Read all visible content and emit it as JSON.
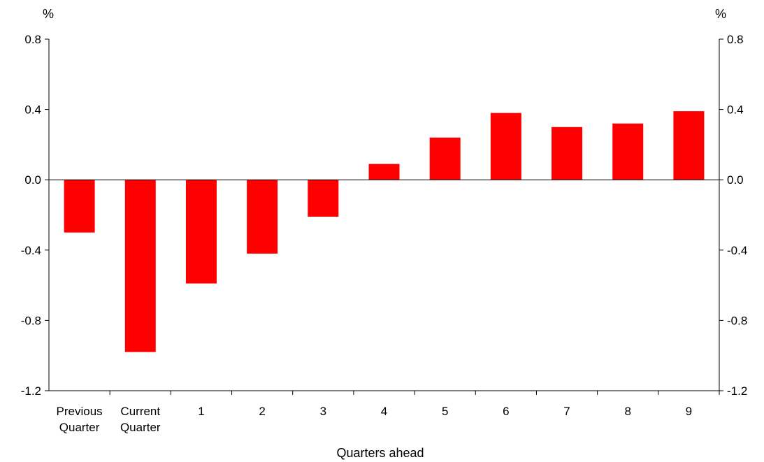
{
  "chart_data": {
    "type": "bar",
    "categories": [
      [
        "Previous",
        "Quarter"
      ],
      [
        "Current",
        "Quarter"
      ],
      [
        "1"
      ],
      [
        "2"
      ],
      [
        "3"
      ],
      [
        "4"
      ],
      [
        "5"
      ],
      [
        "6"
      ],
      [
        "7"
      ],
      [
        "8"
      ],
      [
        "9"
      ]
    ],
    "values": [
      -0.3,
      -0.98,
      -0.59,
      -0.42,
      -0.21,
      0.09,
      0.24,
      0.38,
      0.3,
      0.32,
      0.39
    ],
    "xlabel": "Quarters ahead",
    "ylabel_left": "%",
    "ylabel_right": "%",
    "ylim": [
      -1.2,
      0.8
    ],
    "yticks": [
      "0.8",
      "0.4",
      "0.0",
      "-0.4",
      "-0.8",
      "-1.2"
    ],
    "ytick_values": [
      0.8,
      0.4,
      0.0,
      -0.4,
      -0.8,
      -1.2
    ],
    "bar_color": "#ff0000",
    "grid": false
  }
}
